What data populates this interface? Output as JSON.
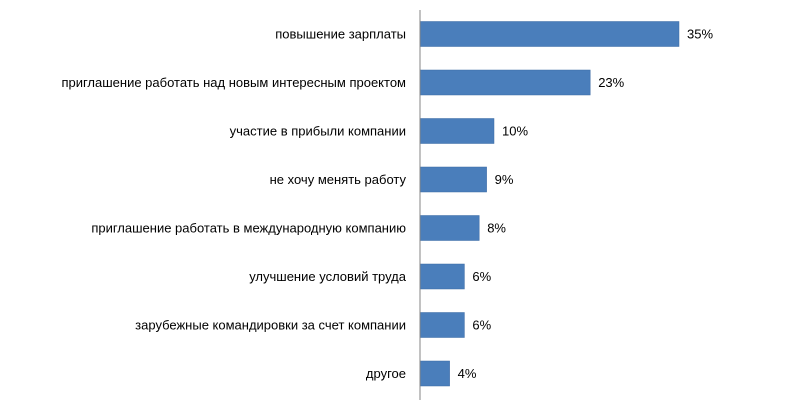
{
  "chart_data": {
    "type": "bar",
    "orientation": "horizontal",
    "categories": [
      "повышение зарплаты",
      "приглашение работать над новым интересным проектом",
      "участие в прибыли компании",
      "не хочу менять работу",
      "приглашение работать в международную компанию",
      "улучшение условий труда",
      "зарубежные командировки за счет компании",
      "другое"
    ],
    "values": [
      35,
      23,
      10,
      9,
      8,
      6,
      6,
      4
    ],
    "value_labels": [
      "35%",
      "23%",
      "10%",
      "9%",
      "8%",
      "6%",
      "6%",
      "4%"
    ],
    "unit": "%",
    "title": "",
    "xlabel": "",
    "ylabel": "",
    "xlim": [
      0,
      35
    ],
    "grid": false,
    "legend": "none",
    "colors": {
      "bar": "#4a7ebb",
      "bar_edge": "#3b6aa3",
      "axis": "#868686"
    }
  }
}
